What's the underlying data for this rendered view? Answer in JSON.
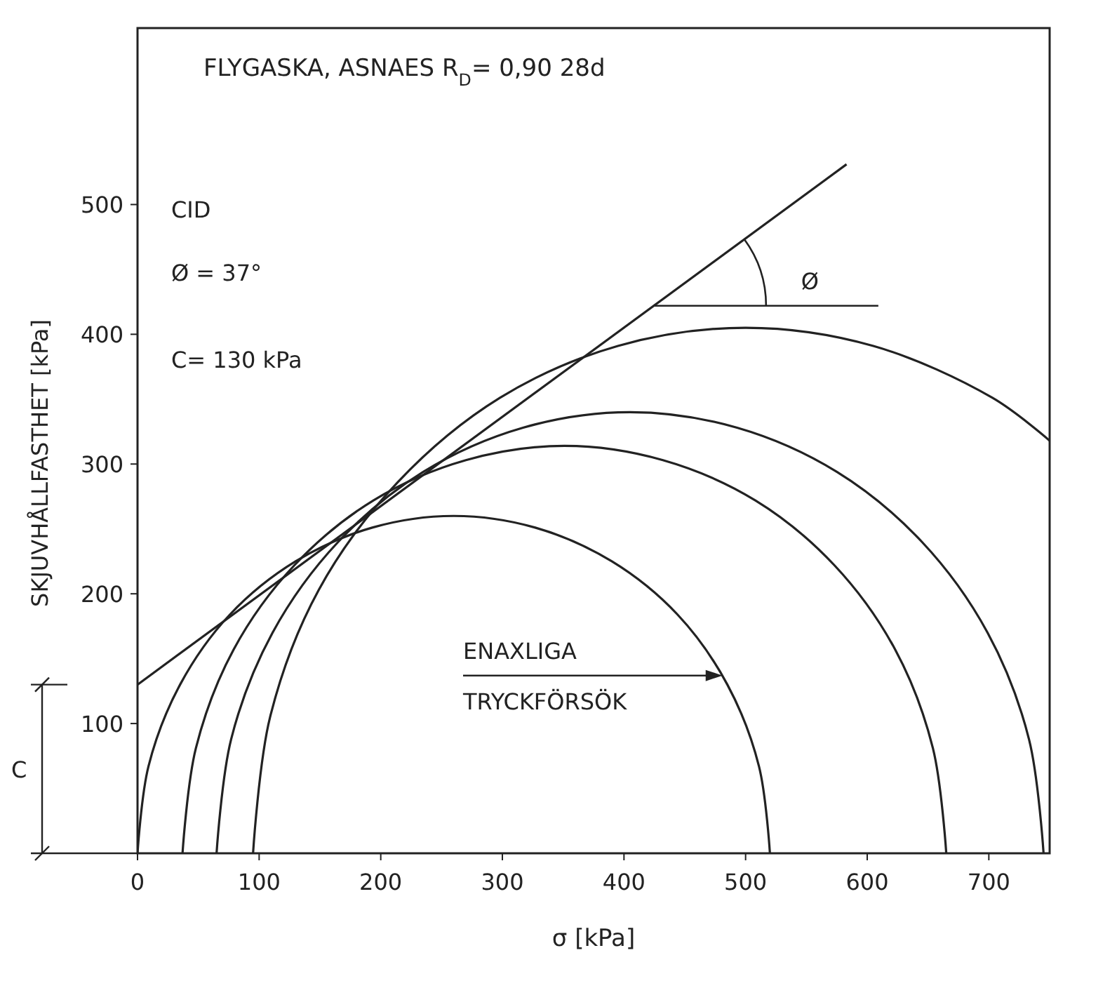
{
  "chart_data": {
    "type": "line",
    "title": "FLYGASKA, ASNAES R$_{D}$= 0,90 28d",
    "xlabel": "σ [kPa]",
    "ylabel": "SKJUVHÅLLFASTHET [kPa]",
    "xlim": [
      0,
      750
    ],
    "ylim": [
      0,
      636
    ],
    "xticks": [
      0,
      100,
      200,
      300,
      400,
      500,
      600,
      700
    ],
    "yticks": [
      100,
      200,
      300,
      400,
      500
    ],
    "grid": false,
    "marker": "none",
    "line_style": "solid",
    "series": [
      {
        "color": "#222222",
        "x": [
          0,
          9,
          35,
          76,
          130,
          193,
          260,
          327,
          390,
          444,
          485,
          511,
          520
        ],
        "values": [
          0,
          67,
          130,
          184,
          225,
          251,
          260,
          251,
          225,
          184,
          130,
          67,
          0
        ]
      },
      {
        "color": "#222222",
        "x": [
          37,
          48,
          79,
          129,
          194,
          270,
          351,
          432,
          508,
          573,
          623,
          654,
          665
        ],
        "values": [
          0,
          81,
          157,
          222,
          272,
          303,
          314,
          303,
          272,
          222,
          157,
          81,
          0
        ]
      },
      {
        "color": "#222222",
        "x": [
          65,
          77,
          111,
          165,
          235,
          317,
          405,
          493,
          575,
          645,
          699,
          733,
          745
        ],
        "values": [
          0,
          88,
          170,
          240,
          294,
          328,
          340,
          328,
          294,
          240,
          170,
          88,
          0
        ]
      },
      {
        "color": "#222222",
        "x": [
          95,
          109,
          149,
          214,
          298,
          395,
          500,
          605,
          703,
          750
        ],
        "values": [
          0,
          105,
          203,
          286,
          351,
          391,
          405,
          391,
          351,
          318
        ]
      },
      {
        "color": "#222222",
        "x": [
          0,
          583
        ],
        "values": [
          130,
          531
        ]
      }
    ],
    "annotations": [
      "CID",
      "Ø = 37°",
      "C= 130 kPa",
      {
        "text": "ENAXLIGA TRYCKFÖRSÖK",
        "x": 481,
        "y": 137
      },
      "Ø",
      "C"
    ]
  }
}
